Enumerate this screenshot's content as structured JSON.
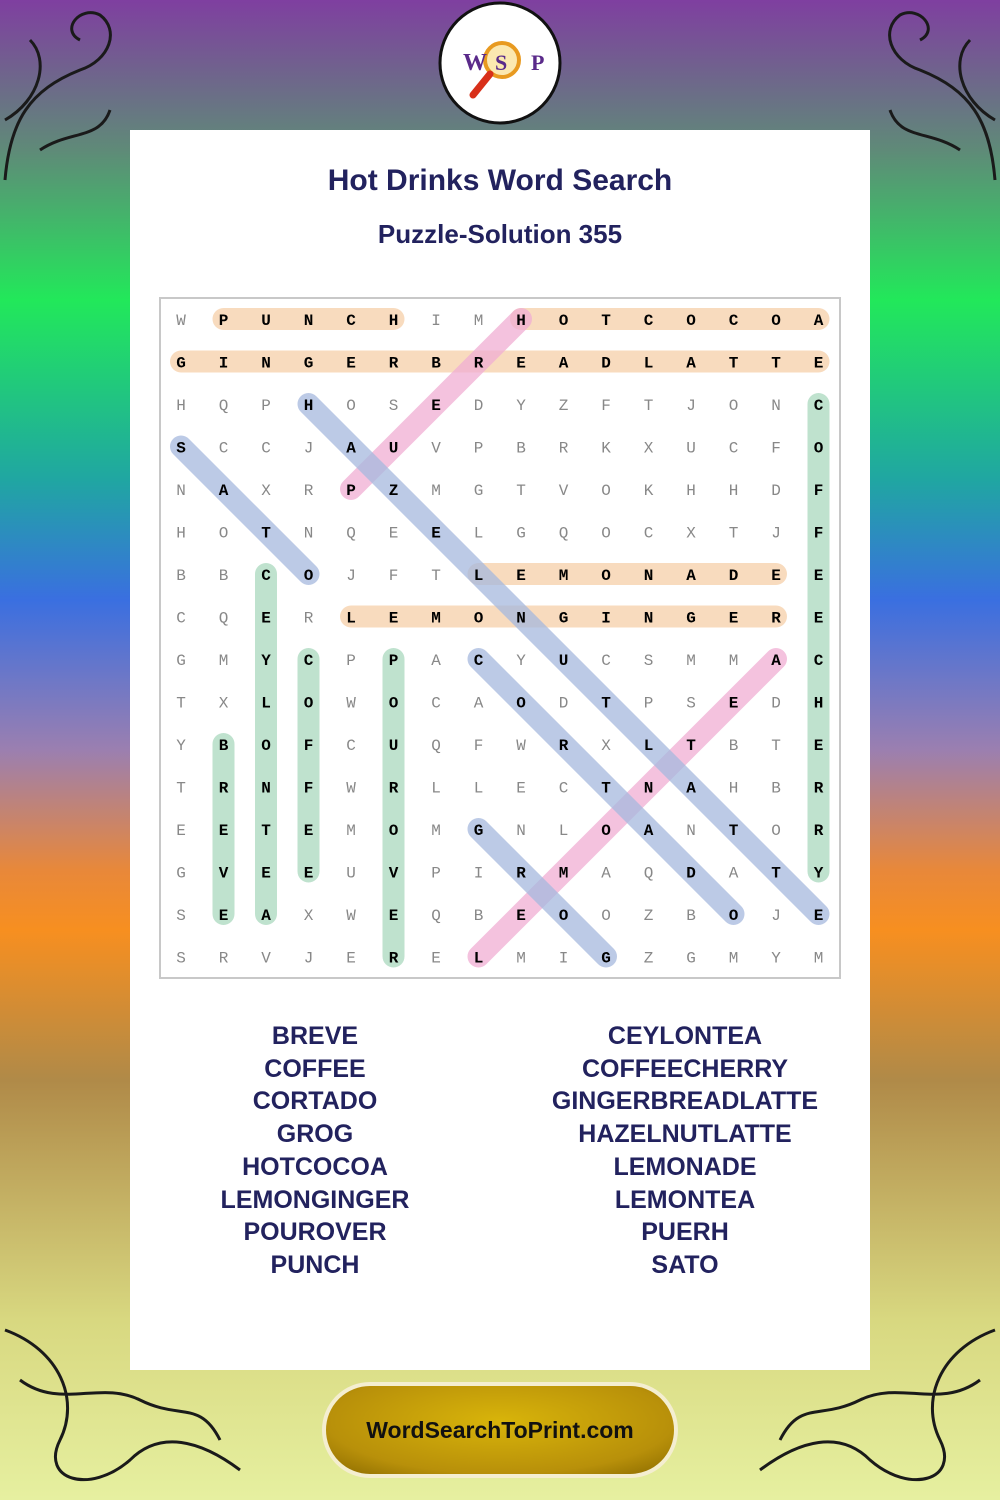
{
  "logo": {
    "letters": [
      "W",
      "S",
      "P"
    ]
  },
  "header": {
    "title": "Hot Drinks Word Search",
    "subtitle": "Puzzle-Solution 355"
  },
  "grid": {
    "rows": [
      [
        "W",
        "P",
        "U",
        "N",
        "C",
        "H",
        "I",
        "M",
        "H",
        "O",
        "T",
        "C",
        "O",
        "C",
        "O",
        "A"
      ],
      [
        "G",
        "I",
        "N",
        "G",
        "E",
        "R",
        "B",
        "R",
        "E",
        "A",
        "D",
        "L",
        "A",
        "T",
        "T",
        "E"
      ],
      [
        "H",
        "Q",
        "P",
        "H",
        "O",
        "S",
        "E",
        "D",
        "Y",
        "Z",
        "F",
        "T",
        "J",
        "O",
        "N",
        "C"
      ],
      [
        "S",
        "C",
        "C",
        "J",
        "A",
        "U",
        "V",
        "P",
        "B",
        "R",
        "K",
        "X",
        "U",
        "C",
        "F",
        "O"
      ],
      [
        "N",
        "A",
        "X",
        "R",
        "P",
        "Z",
        "M",
        "G",
        "T",
        "V",
        "O",
        "K",
        "H",
        "H",
        "D",
        "F"
      ],
      [
        "H",
        "O",
        "T",
        "N",
        "Q",
        "E",
        "E",
        "L",
        "G",
        "Q",
        "O",
        "C",
        "X",
        "T",
        "J",
        "F"
      ],
      [
        "B",
        "B",
        "C",
        "O",
        "J",
        "F",
        "T",
        "L",
        "E",
        "M",
        "O",
        "N",
        "A",
        "D",
        "E",
        "E"
      ],
      [
        "C",
        "Q",
        "E",
        "R",
        "L",
        "E",
        "M",
        "O",
        "N",
        "G",
        "I",
        "N",
        "G",
        "E",
        "R",
        "E"
      ],
      [
        "G",
        "M",
        "Y",
        "C",
        "P",
        "P",
        "A",
        "C",
        "Y",
        "U",
        "C",
        "S",
        "M",
        "M",
        "A",
        "C"
      ],
      [
        "T",
        "X",
        "L",
        "O",
        "W",
        "O",
        "C",
        "A",
        "O",
        "D",
        "T",
        "P",
        "S",
        "E",
        "D",
        "H"
      ],
      [
        "Y",
        "B",
        "O",
        "F",
        "C",
        "U",
        "Q",
        "F",
        "W",
        "R",
        "X",
        "L",
        "T",
        "B",
        "T",
        "E"
      ],
      [
        "T",
        "R",
        "N",
        "F",
        "W",
        "R",
        "L",
        "L",
        "E",
        "C",
        "T",
        "N",
        "A",
        "H",
        "B",
        "R"
      ],
      [
        "E",
        "E",
        "T",
        "E",
        "M",
        "O",
        "M",
        "G",
        "N",
        "L",
        "O",
        "A",
        "N",
        "T",
        "O",
        "R"
      ],
      [
        "G",
        "V",
        "E",
        "E",
        "U",
        "V",
        "P",
        "I",
        "R",
        "M",
        "A",
        "Q",
        "D",
        "A",
        "T",
        "Y"
      ],
      [
        "S",
        "E",
        "A",
        "X",
        "W",
        "E",
        "Q",
        "B",
        "E",
        "O",
        "O",
        "Z",
        "B",
        "O",
        "J",
        "E"
      ],
      [
        "S",
        "R",
        "V",
        "J",
        "E",
        "R",
        "E",
        "L",
        "M",
        "I",
        "G",
        "Z",
        "G",
        "M",
        "Y",
        "M"
      ]
    ],
    "solution": [
      {
        "from": [
          0,
          1
        ],
        "to": [
          0,
          5
        ],
        "color": "#f5cfa8"
      },
      {
        "from": [
          0,
          8
        ],
        "to": [
          0,
          15
        ],
        "color": "#f5cfa8"
      },
      {
        "from": [
          1,
          0
        ],
        "to": [
          1,
          15
        ],
        "color": "#f5cfa8"
      },
      {
        "from": [
          6,
          7
        ],
        "to": [
          6,
          14
        ],
        "color": "#f5cfa8"
      },
      {
        "from": [
          7,
          4
        ],
        "to": [
          7,
          14
        ],
        "color": "#f5cfa8"
      },
      {
        "from": [
          2,
          15
        ],
        "to": [
          13,
          15
        ],
        "color": "#a9d8bd"
      },
      {
        "from": [
          6,
          2
        ],
        "to": [
          14,
          2
        ],
        "color": "#a9d8bd"
      },
      {
        "from": [
          8,
          3
        ],
        "to": [
          13,
          3
        ],
        "color": "#a9d8bd"
      },
      {
        "from": [
          8,
          5
        ],
        "to": [
          15,
          5
        ],
        "color": "#a9d8bd"
      },
      {
        "from": [
          10,
          1
        ],
        "to": [
          14,
          1
        ],
        "color": "#a9d8bd"
      },
      {
        "from": [
          4,
          4
        ],
        "to": [
          0,
          8
        ],
        "color": "#f0aed3"
      },
      {
        "from": [
          15,
          7
        ],
        "to": [
          8,
          14
        ],
        "color": "#f0aed3"
      },
      {
        "from": [
          3,
          0
        ],
        "to": [
          6,
          3
        ],
        "color": "#a5b8de"
      },
      {
        "from": [
          2,
          3
        ],
        "to": [
          14,
          15
        ],
        "color": "#a5b8de"
      },
      {
        "from": [
          8,
          7
        ],
        "to": [
          14,
          13
        ],
        "color": "#a5b8de"
      },
      {
        "from": [
          12,
          7
        ],
        "to": [
          15,
          10
        ],
        "color": "#a5b8de"
      }
    ]
  },
  "words": {
    "left": [
      "BREVE",
      "COFFEE",
      "CORTADO",
      "GROG",
      "HOTCOCOA",
      "LEMONGINGER",
      "POUROVER",
      "PUNCH"
    ],
    "right": [
      "CEYLONTEA",
      "COFFEECHERRY",
      "GINGERBREADLATTE",
      "HAZELNUTLATTE",
      "LEMONADE",
      "LEMONTEA",
      "PUERH",
      "SATO"
    ]
  },
  "footer": {
    "site": "WordSearchToPrint.com"
  }
}
